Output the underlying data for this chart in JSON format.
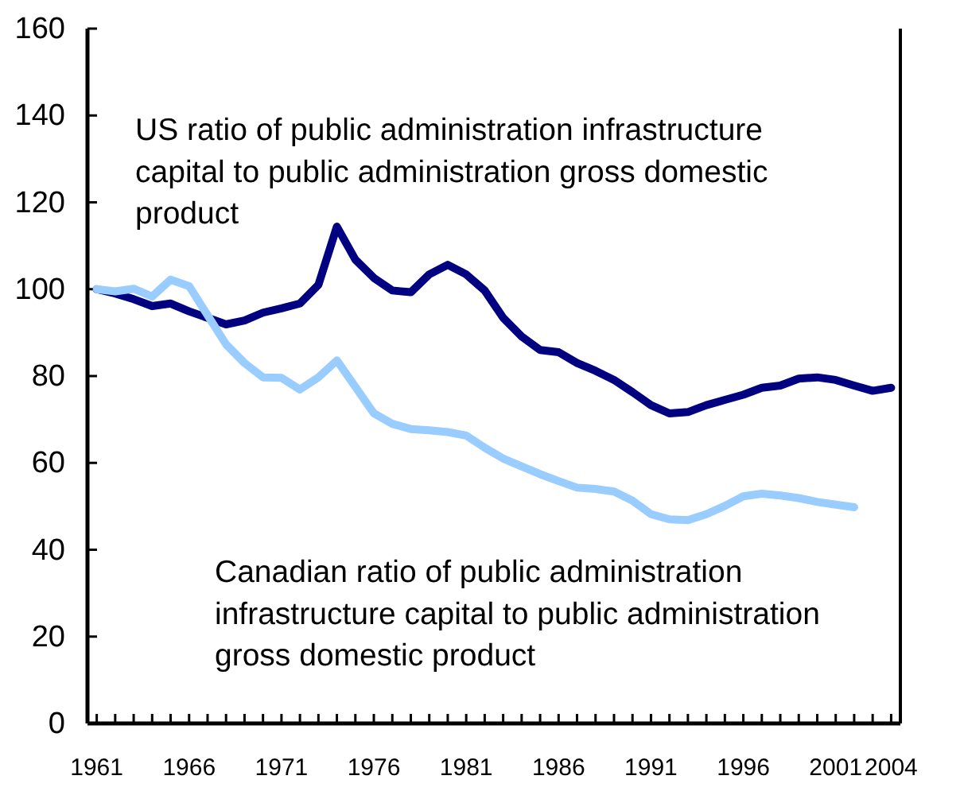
{
  "chart_data": {
    "type": "line",
    "x": [
      1961,
      1962,
      1963,
      1964,
      1965,
      1966,
      1967,
      1968,
      1969,
      1970,
      1971,
      1972,
      1973,
      1974,
      1975,
      1976,
      1977,
      1978,
      1979,
      1980,
      1981,
      1982,
      1983,
      1984,
      1985,
      1986,
      1987,
      1988,
      1989,
      1990,
      1991,
      1992,
      1993,
      1994,
      1995,
      1996,
      1997,
      1998,
      1999,
      2000,
      2001,
      2002,
      2003,
      2004
    ],
    "series": [
      {
        "name": "US ratio of public administration infrastructure capital to public administration gross domestic product",
        "color": "#000080",
        "values": [
          100,
          99,
          97.7,
          96.1,
          96.7,
          94.9,
          93.4,
          91.9,
          92.8,
          94.6,
          95.6,
          96.7,
          101,
          114.4,
          106.8,
          102.6,
          99.7,
          99.3,
          103.4,
          105.6,
          103.4,
          99.7,
          93.4,
          89.1,
          86,
          85.5,
          83,
          81.2,
          79.1,
          76.3,
          73.3,
          71.4,
          71.7,
          73.3,
          74.5,
          75.7,
          77.3,
          77.8,
          79.4,
          79.7,
          79.1,
          77.8,
          76.6,
          77.3
        ]
      },
      {
        "name": "Canadian ratio of public administration infrastructure capital to public administration gross domestic product",
        "color": "#99ccff",
        "values": [
          100,
          99.5,
          100.1,
          98.3,
          102.2,
          100.7,
          94,
          87.3,
          83,
          79.7,
          79.6,
          76.9,
          79.7,
          83.6,
          77.5,
          71.4,
          69,
          67.8,
          67.5,
          67.1,
          66.3,
          63.5,
          61,
          59.2,
          57.4,
          55.8,
          54.3,
          54,
          53.4,
          51.3,
          48.2,
          47,
          46.8,
          48.2,
          50.1,
          52.3,
          52.9,
          52.5,
          51.9,
          51,
          50.4,
          49.8,
          null,
          null
        ]
      }
    ],
    "xlim": [
      1960.5,
      2004.5
    ],
    "xticks": [
      1961,
      {
        "value": 1962,
        "label": null
      },
      {
        "value": 1963,
        "label": null
      },
      {
        "value": 1964,
        "label": null
      },
      {
        "value": 1965,
        "label": null
      },
      1966,
      {
        "value": 1967,
        "label": null
      },
      {
        "value": 1968,
        "label": null
      },
      {
        "value": 1969,
        "label": null
      },
      {
        "value": 1970,
        "label": null
      },
      1971,
      {
        "value": 1972,
        "label": null
      },
      {
        "value": 1973,
        "label": null
      },
      {
        "value": 1974,
        "label": null
      },
      {
        "value": 1975,
        "label": null
      },
      1976,
      {
        "value": 1977,
        "label": null
      },
      {
        "value": 1978,
        "label": null
      },
      {
        "value": 1979,
        "label": null
      },
      {
        "value": 1980,
        "label": null
      },
      1981,
      {
        "value": 1982,
        "label": null
      },
      {
        "value": 1983,
        "label": null
      },
      {
        "value": 1984,
        "label": null
      },
      {
        "value": 1985,
        "label": null
      },
      1986,
      {
        "value": 1987,
        "label": null
      },
      {
        "value": 1988,
        "label": null
      },
      {
        "value": 1989,
        "label": null
      },
      {
        "value": 1990,
        "label": null
      },
      1991,
      {
        "value": 1992,
        "label": null
      },
      {
        "value": 1993,
        "label": null
      },
      {
        "value": 1994,
        "label": null
      },
      {
        "value": 1995,
        "label": null
      },
      1996,
      {
        "value": 1997,
        "label": null
      },
      {
        "value": 1998,
        "label": null
      },
      {
        "value": 1999,
        "label": null
      },
      {
        "value": 2000,
        "label": null
      },
      2001,
      {
        "value": 2002,
        "label": null
      },
      {
        "value": 2003,
        "label": null
      },
      2004
    ],
    "ylim": [
      0,
      160
    ],
    "yticks": [
      0,
      20,
      40,
      60,
      80,
      100,
      120,
      140,
      160
    ],
    "grid": false,
    "legend": false,
    "marker": "none",
    "line_style": "solid"
  }
}
